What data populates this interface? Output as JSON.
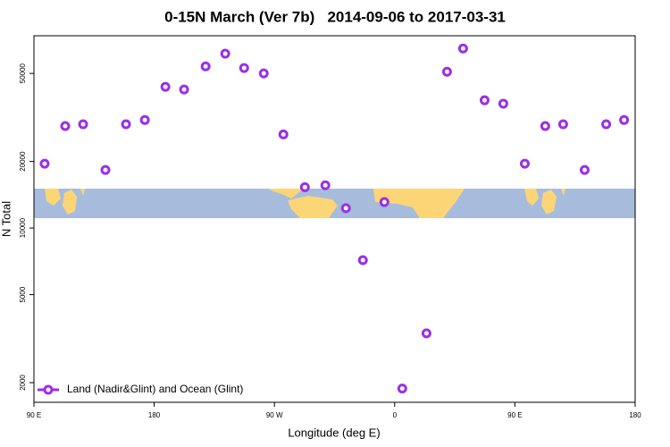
{
  "chart_data": {
    "type": "scatter",
    "title": "0-15N March (Ver 7b)   2014-09-06 to 2017-03-31",
    "x_label": "Longitude (deg E)",
    "y_label": "N Total",
    "ylog": true,
    "xlim": [
      90,
      540
    ],
    "ylim": [
      1630,
      74000
    ],
    "xticks": [
      {
        "value": 90,
        "label": "90 E"
      },
      {
        "value": 180,
        "label": "180"
      },
      {
        "value": 270,
        "label": "90 W"
      },
      {
        "value": 360,
        "label": "0"
      },
      {
        "value": 450,
        "label": "90 E"
      },
      {
        "value": 540,
        "label": "180"
      }
    ],
    "yticks": [
      2000,
      5000,
      10000,
      20000,
      50000
    ],
    "legend_position": "bottom-left",
    "series": [
      {
        "name": "Land (Nadir&Glint) and Ocean (Glint)",
        "color": "#9b2ee6",
        "x": [
          98,
          113.4,
          126.8,
          143.5,
          158.9,
          173,
          188.4,
          202.4,
          218.5,
          233.2,
          247.3,
          262,
          276.7,
          292.8,
          308.1,
          323.5,
          336.2,
          352.3,
          365.7,
          383.8,
          399.2,
          411.2,
          427.3,
          441.3,
          457.4,
          472.7,
          486.1,
          502.2,
          518.3,
          531.7
        ],
        "values": [
          19540,
          28900,
          29450,
          18300,
          29450,
          30800,
          43500,
          42300,
          53800,
          61400,
          52900,
          50000,
          26500,
          15300,
          15600,
          12300,
          7160,
          13100,
          1880,
          3340,
          50900,
          64800,
          37800,
          36500,
          19540,
          28900,
          29450,
          18300,
          29450,
          30800
        ]
      }
    ]
  }
}
